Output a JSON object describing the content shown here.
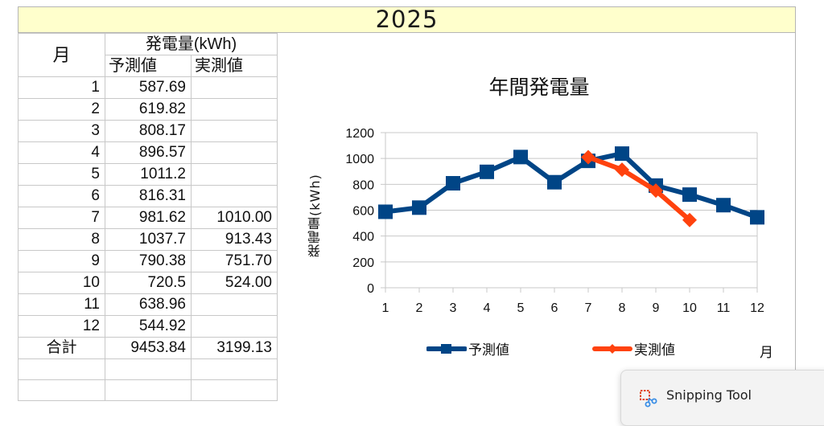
{
  "sheet": {
    "title": "2025",
    "title_bg": "#ffffcc"
  },
  "table": {
    "header": {
      "month": "月",
      "group": "発電量(kWh)",
      "forecast": "予測値",
      "actual": "実測値"
    },
    "rows": [
      {
        "month": "1",
        "forecast": "587.69",
        "actual": ""
      },
      {
        "month": "2",
        "forecast": "619.82",
        "actual": ""
      },
      {
        "month": "3",
        "forecast": "808.17",
        "actual": ""
      },
      {
        "month": "4",
        "forecast": "896.57",
        "actual": ""
      },
      {
        "month": "5",
        "forecast": "1011.2",
        "actual": ""
      },
      {
        "month": "6",
        "forecast": "816.31",
        "actual": ""
      },
      {
        "month": "7",
        "forecast": "981.62",
        "actual": "1010.00"
      },
      {
        "month": "8",
        "forecast": "1037.7",
        "actual": "913.43"
      },
      {
        "month": "9",
        "forecast": "790.38",
        "actual": "751.70"
      },
      {
        "month": "10",
        "forecast": "720.5",
        "actual": "524.00"
      },
      {
        "month": "11",
        "forecast": "638.96",
        "actual": ""
      },
      {
        "month": "12",
        "forecast": "544.92",
        "actual": ""
      }
    ],
    "total": {
      "label": "合計",
      "forecast": "9453.84",
      "actual": "3199.13"
    }
  },
  "chart_data": {
    "type": "line",
    "title": "年間発電量",
    "xlabel": "月",
    "ylabel": "発電量(kWh)",
    "categories": [
      "1",
      "2",
      "3",
      "4",
      "5",
      "6",
      "7",
      "8",
      "9",
      "10",
      "11",
      "12"
    ],
    "ylim": [
      0,
      1200
    ],
    "yticks": [
      0,
      200,
      400,
      600,
      800,
      1000,
      1200
    ],
    "grid": true,
    "legend_position": "bottom",
    "series": [
      {
        "name": "予測値",
        "color": "#004586",
        "marker": "square",
        "values": [
          587.69,
          619.82,
          808.17,
          896.57,
          1011.2,
          816.31,
          981.62,
          1037.7,
          790.38,
          720.5,
          638.96,
          544.92
        ]
      },
      {
        "name": "実測値",
        "color": "#ff420e",
        "marker": "diamond",
        "values": [
          null,
          null,
          null,
          null,
          null,
          null,
          1010.0,
          913.43,
          751.7,
          524.0,
          null,
          null
        ]
      }
    ]
  },
  "toast": {
    "label": "Snipping Tool"
  }
}
